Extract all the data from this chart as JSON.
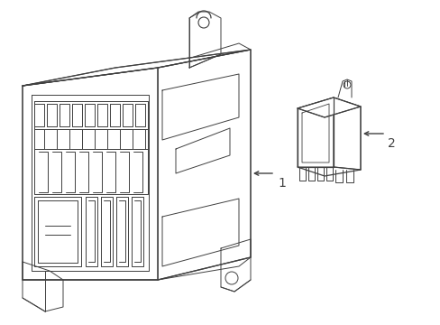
{
  "background_color": "#ffffff",
  "line_color": "#404040",
  "line_width": 0.7,
  "label1": "1",
  "label2": "2",
  "font_size": 10,
  "fig_w": 4.89,
  "fig_h": 3.6,
  "dpi": 100
}
